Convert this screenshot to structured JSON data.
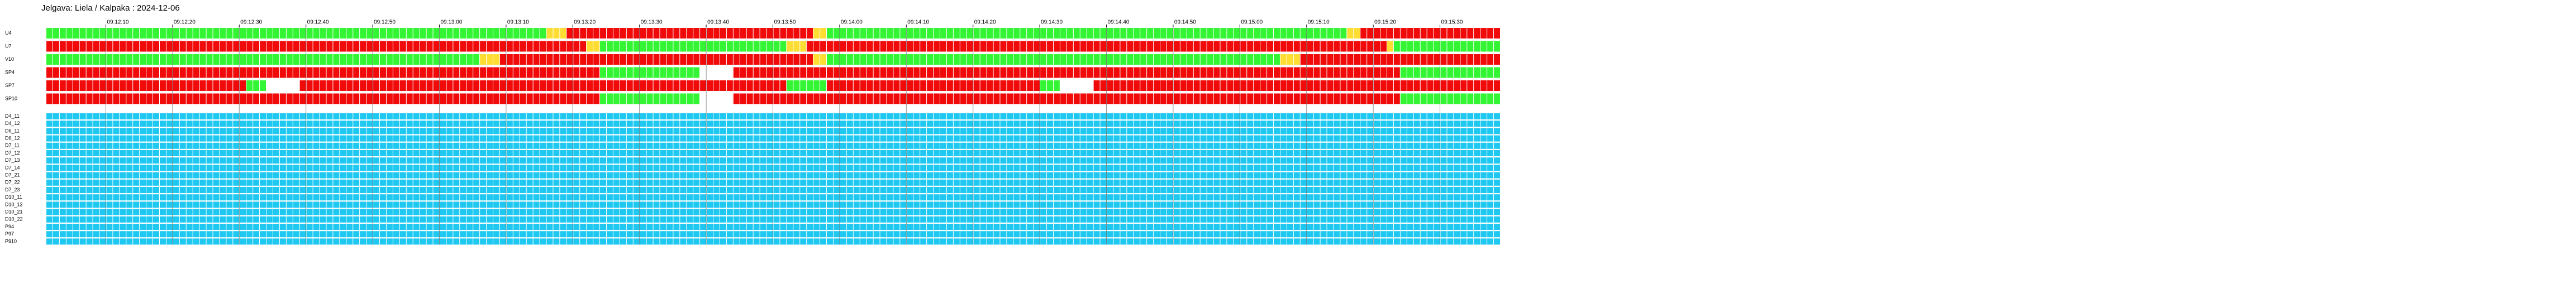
{
  "chart_data": {
    "type": "timeline",
    "title": "Jelgava: Liela / Kalpaka : 2024-12-06",
    "xlim": [
      1,
      219
    ],
    "xticks": [
      {
        "value": 10,
        "label": "09:12:10"
      },
      {
        "value": 20,
        "label": "09:12:20"
      },
      {
        "value": 30,
        "label": "09:12:30"
      },
      {
        "value": 40,
        "label": "09:12:40"
      },
      {
        "value": 50,
        "label": "09:12:50"
      },
      {
        "value": 60,
        "label": "09:13:00"
      },
      {
        "value": 70,
        "label": "09:13:10"
      },
      {
        "value": 80,
        "label": "09:13:20"
      },
      {
        "value": 90,
        "label": "09:13:30"
      },
      {
        "value": 100,
        "label": "09:13:40"
      },
      {
        "value": 110,
        "label": "09:13:50"
      },
      {
        "value": 120,
        "label": "09:14:00"
      },
      {
        "value": 130,
        "label": "09:14:10"
      },
      {
        "value": 140,
        "label": "09:14:20"
      },
      {
        "value": 150,
        "label": "09:14:30"
      },
      {
        "value": 160,
        "label": "09:14:40"
      },
      {
        "value": 170,
        "label": "09:14:50"
      },
      {
        "value": 180,
        "label": "09:15:00"
      },
      {
        "value": 190,
        "label": "09:15:10"
      },
      {
        "value": 200,
        "label": "09:15:20"
      },
      {
        "value": 210,
        "label": "09:15:30"
      }
    ],
    "grid": true,
    "state_colors": {
      "red": "#f00a0a",
      "green": "#33f533",
      "yellow": "#ffdd33",
      "off": "#ffffff",
      "idle": "#1ec8f0"
    },
    "panels": [
      {
        "rows": [
          {
            "name": "U4",
            "segments": [
              [
                1,
                76,
                "green"
              ],
              [
                76,
                79,
                "yellow"
              ],
              [
                79,
                116,
                "red"
              ],
              [
                116,
                118,
                "yellow"
              ],
              [
                118,
                196,
                "green"
              ],
              [
                196,
                198,
                "yellow"
              ],
              [
                198,
                219,
                "red"
              ]
            ]
          },
          {
            "name": "U7",
            "segments": [
              [
                1,
                82,
                "red"
              ],
              [
                82,
                84,
                "yellow"
              ],
              [
                84,
                112,
                "green"
              ],
              [
                112,
                115,
                "yellow"
              ],
              [
                115,
                202,
                "red"
              ],
              [
                202,
                203,
                "yellow"
              ],
              [
                203,
                219,
                "green"
              ]
            ]
          },
          {
            "name": "V10",
            "segments": [
              [
                1,
                66,
                "green"
              ],
              [
                66,
                69,
                "yellow"
              ],
              [
                69,
                116,
                "red"
              ],
              [
                116,
                118,
                "yellow"
              ],
              [
                118,
                186,
                "green"
              ],
              [
                186,
                189,
                "yellow"
              ],
              [
                189,
                219,
                "red"
              ]
            ]
          },
          {
            "name": "SP4",
            "segments": [
              [
                1,
                84,
                "red"
              ],
              [
                84,
                99,
                "green"
              ],
              [
                99,
                104,
                "off"
              ],
              [
                104,
                204,
                "red"
              ],
              [
                204,
                219,
                "green"
              ]
            ]
          },
          {
            "name": "SP7",
            "segments": [
              [
                1,
                31,
                "red"
              ],
              [
                31,
                34,
                "green"
              ],
              [
                34,
                39,
                "off"
              ],
              [
                39,
                112,
                "red"
              ],
              [
                112,
                118,
                "green"
              ],
              [
                118,
                150,
                "red"
              ],
              [
                150,
                153,
                "green"
              ],
              [
                153,
                158,
                "off"
              ],
              [
                158,
                219,
                "red"
              ]
            ]
          },
          {
            "name": "SP10",
            "segments": [
              [
                1,
                84,
                "red"
              ],
              [
                84,
                99,
                "green"
              ],
              [
                99,
                104,
                "off"
              ],
              [
                104,
                204,
                "red"
              ],
              [
                204,
                219,
                "green"
              ]
            ]
          }
        ]
      },
      {
        "rows": [
          {
            "name": "D4_11",
            "segments": [
              [
                1,
                219,
                "idle"
              ]
            ]
          },
          {
            "name": "D4_12",
            "segments": [
              [
                1,
                219,
                "idle"
              ]
            ]
          },
          {
            "name": "D6_11",
            "segments": [
              [
                1,
                219,
                "idle"
              ]
            ]
          },
          {
            "name": "D6_12",
            "segments": [
              [
                1,
                219,
                "idle"
              ]
            ]
          },
          {
            "name": "D7_11",
            "segments": [
              [
                1,
                219,
                "idle"
              ]
            ]
          },
          {
            "name": "D7_12",
            "segments": [
              [
                1,
                219,
                "idle"
              ]
            ]
          },
          {
            "name": "D7_13",
            "segments": [
              [
                1,
                219,
                "idle"
              ]
            ]
          },
          {
            "name": "D7_14",
            "segments": [
              [
                1,
                219,
                "idle"
              ]
            ]
          },
          {
            "name": "D7_21",
            "segments": [
              [
                1,
                219,
                "idle"
              ]
            ]
          },
          {
            "name": "D7_22",
            "segments": [
              [
                1,
                219,
                "idle"
              ]
            ]
          },
          {
            "name": "D7_23",
            "segments": [
              [
                1,
                219,
                "idle"
              ]
            ]
          },
          {
            "name": "D10_11",
            "segments": [
              [
                1,
                219,
                "idle"
              ]
            ]
          },
          {
            "name": "D10_12",
            "segments": [
              [
                1,
                219,
                "idle"
              ]
            ]
          },
          {
            "name": "D10_21",
            "segments": [
              [
                1,
                219,
                "idle"
              ]
            ]
          },
          {
            "name": "D10_22",
            "segments": [
              [
                1,
                219,
                "idle"
              ]
            ]
          },
          {
            "name": "P94",
            "segments": [
              [
                1,
                219,
                "idle"
              ]
            ]
          },
          {
            "name": "P97",
            "segments": [
              [
                1,
                219,
                "idle"
              ]
            ]
          },
          {
            "name": "P910",
            "segments": [
              [
                1,
                219,
                "idle"
              ]
            ]
          }
        ]
      }
    ]
  }
}
